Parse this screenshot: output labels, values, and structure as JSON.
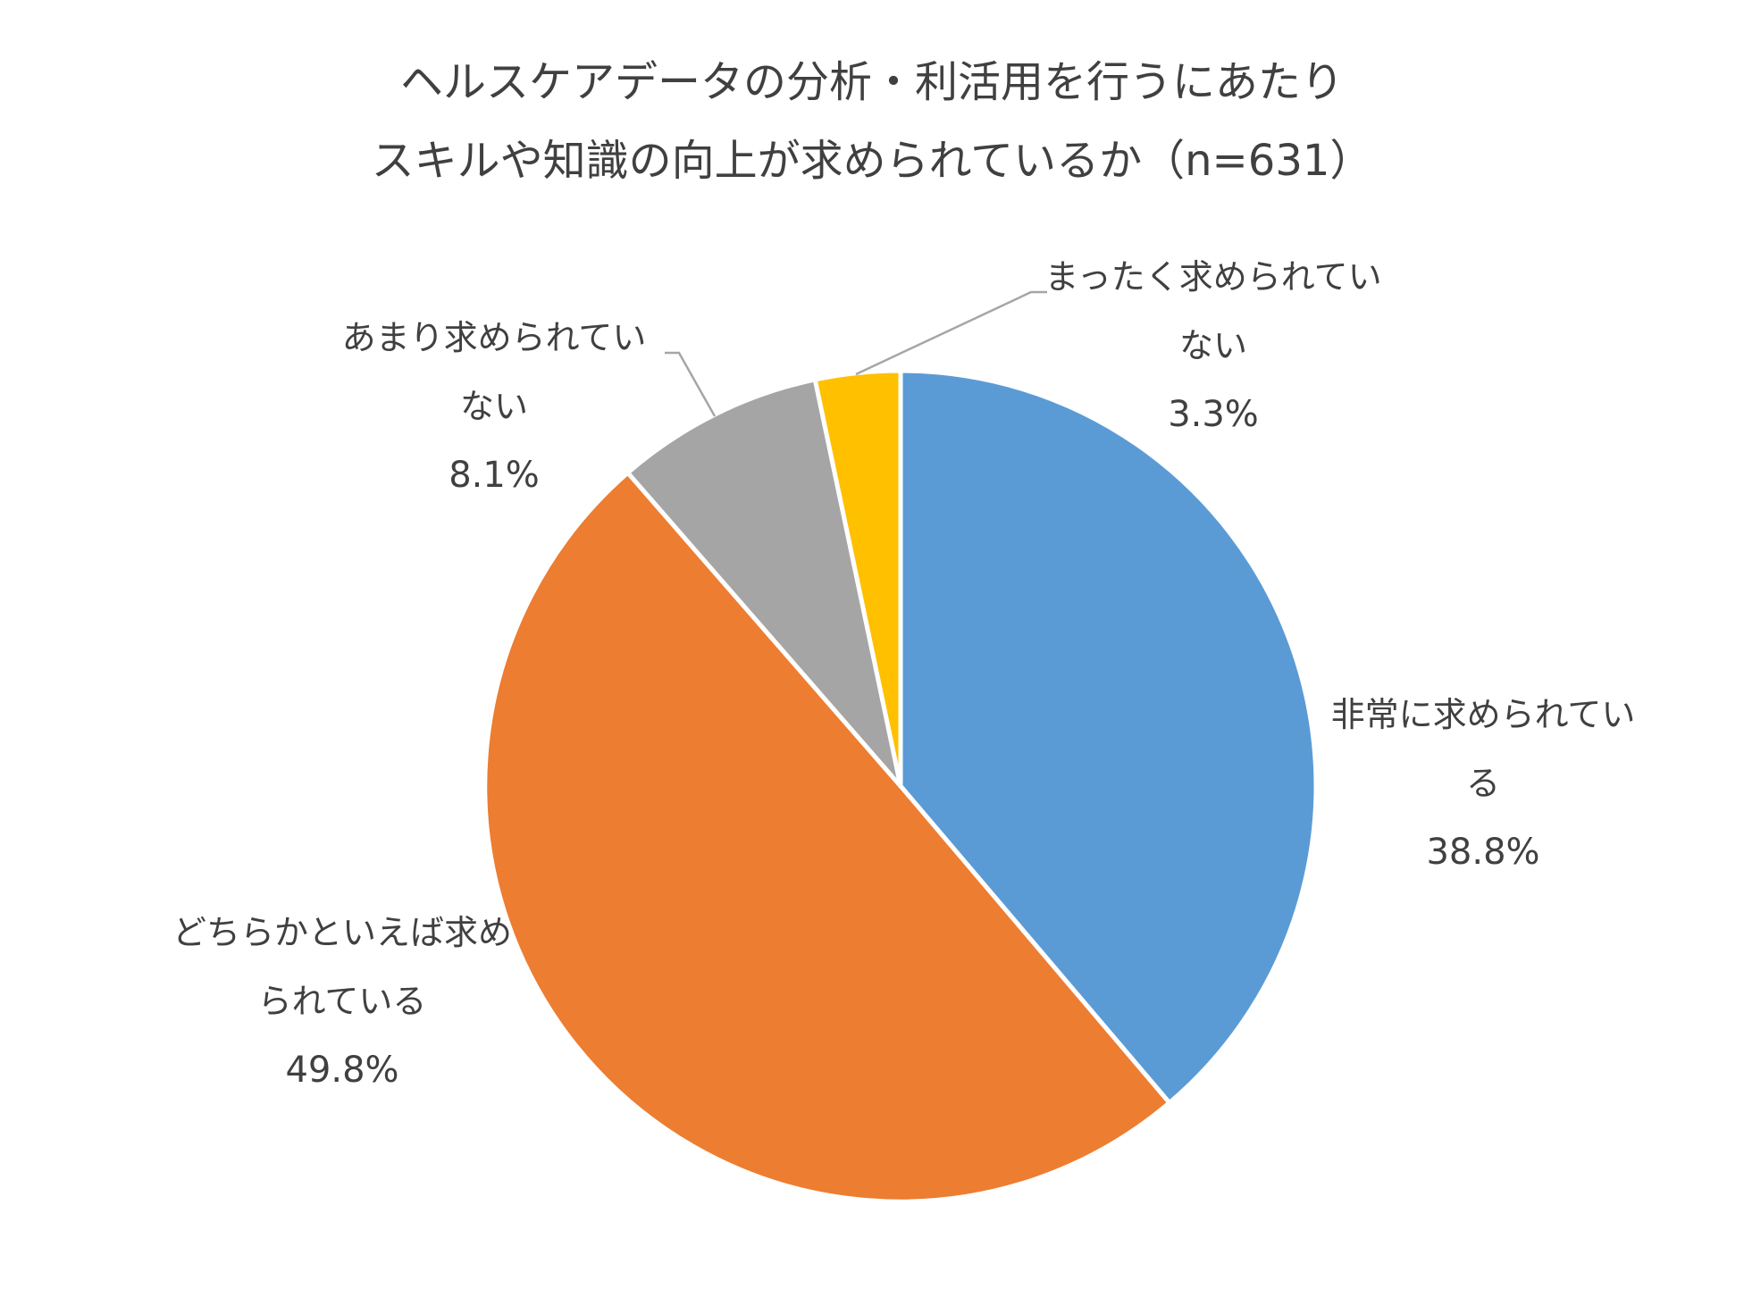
{
  "chart_data": {
    "type": "pie",
    "title": [
      "ヘルスケアデータの分析・利活用を行うにあたり",
      "スキルや知識の向上が求められているか（n=631）"
    ],
    "slices": [
      {
        "label": [
          "非常に求められてい",
          "る"
        ],
        "value": 38.8,
        "display": "38.8%",
        "color": "#5B9BD5"
      },
      {
        "label": [
          "どちらかといえば求め",
          "られている"
        ],
        "value": 49.8,
        "display": "49.8%",
        "color": "#ED7D31"
      },
      {
        "label": [
          "あまり求められてい",
          "ない"
        ],
        "value": 8.1,
        "display": "8.1%",
        "color": "#A5A5A5"
      },
      {
        "label": [
          "まったく求められてい",
          "ない"
        ],
        "value": 3.3,
        "display": "3.3%",
        "color": "#FFC000"
      }
    ],
    "start_angle": "12 o'clock",
    "direction": "clockwise",
    "legend": "none"
  }
}
